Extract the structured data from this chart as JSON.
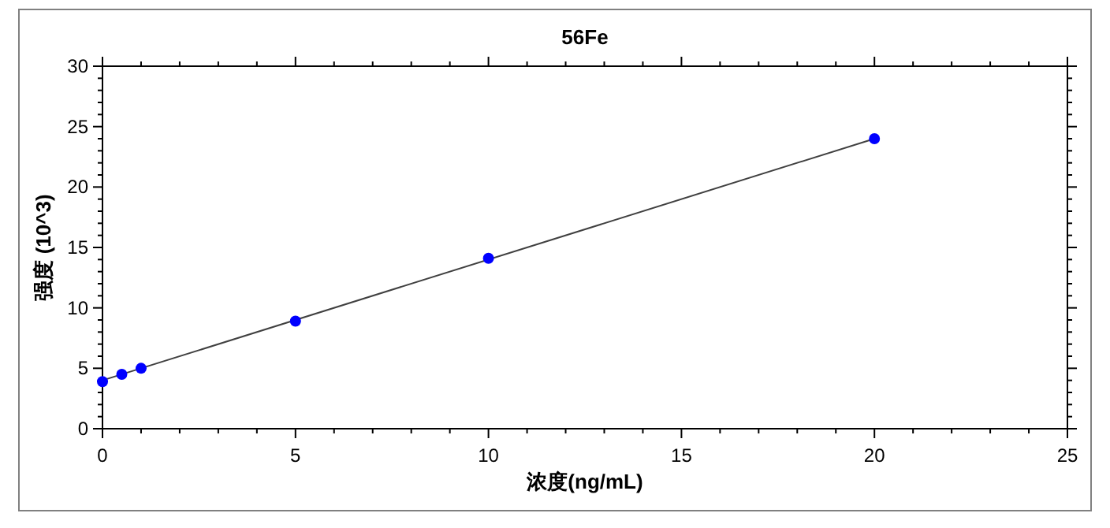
{
  "chart_data": {
    "type": "scatter",
    "title": "56Fe",
    "xlabel": "浓度(ng/mL)",
    "ylabel": "强度 (10^3)",
    "xlim": [
      0,
      25
    ],
    "xticks": [
      0,
      5,
      10,
      15,
      20,
      25
    ],
    "ylim": [
      0,
      30
    ],
    "yticks": [
      0,
      5,
      10,
      15,
      20,
      25,
      30
    ],
    "grid": false,
    "series": [
      {
        "type": "line",
        "color": "#404040",
        "x": [
          0,
          20
        ],
        "values": [
          4.0,
          24.0
        ],
        "marker": "none",
        "line_style": "solid"
      },
      {
        "color": "#0000ff",
        "x": [
          0,
          0.5,
          1,
          5,
          10,
          20
        ],
        "values": [
          3.9,
          4.5,
          5.0,
          8.9,
          14.1,
          24.0
        ],
        "marker": "circle"
      }
    ]
  }
}
